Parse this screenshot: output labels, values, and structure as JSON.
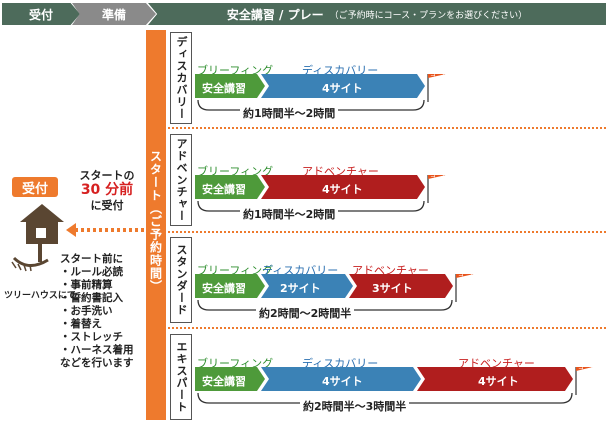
{
  "header": {
    "step1": "受付",
    "step2": "準備",
    "step3": "安全講習 / プレー",
    "step3_note": "（ご予約時にコース・プランをお選びください）"
  },
  "start_bar": {
    "label": "スタート（ご予約時間）"
  },
  "left": {
    "reception_badge": "受付",
    "start_line1": "スタートの",
    "start_line2": "30 分前",
    "start_line3": "に受付",
    "treehouse_label": "ツリーハウスにて",
    "notes": [
      "スタート前に",
      "・ルール必読",
      "・事前精算",
      "・誓約書記入",
      "・お手洗い",
      "・着替え",
      "・ストレッチ",
      "・ハーネス着用",
      "などを行います"
    ]
  },
  "courses": [
    {
      "name": "ディスカバリー",
      "briefing_caption": "ブリーフィング",
      "briefing_label": "安全講習",
      "seg1_caption": "ディスカバリー",
      "seg1_label": "4サイト",
      "seg2_caption": "",
      "seg2_label": "",
      "goal": "ゴール",
      "duration": "約1時間半〜2時間"
    },
    {
      "name": "アドベンチャー",
      "briefing_caption": "ブリーフィング",
      "briefing_label": "安全講習",
      "seg1_caption": "アドベンチャー",
      "seg1_label": "4サイト",
      "seg2_caption": "",
      "seg2_label": "",
      "goal": "ゴール",
      "duration": "約1時間半〜2時間"
    },
    {
      "name": "スタンダード",
      "briefing_caption": "ブリーフィング",
      "briefing_label": "安全講習",
      "seg1_caption": "ディスカバリー",
      "seg1_label": "2サイト",
      "seg2_caption": "アドベンチャー",
      "seg2_label": "3サイト",
      "goal": "ゴール",
      "duration": "約2時間〜2時間半"
    },
    {
      "name": "エキスパート",
      "briefing_caption": "ブリーフィング",
      "briefing_label": "安全講習",
      "seg1_caption": "ディスカバリー",
      "seg1_label": "4サイト",
      "seg2_caption": "アドベンチャー",
      "seg2_label": "4サイト",
      "goal": "ゴール",
      "duration": "約2時間半〜3時間半"
    }
  ],
  "colors": {
    "header_dark": "#4d6b5b",
    "header_gray": "#8a8a8a",
    "orange": "#ee7a2d",
    "briefing_green": "#4e9a3a",
    "discovery_blue": "#3b82b6",
    "adventure_red": "#b01e1e",
    "goal_flag": "#e8541c"
  }
}
